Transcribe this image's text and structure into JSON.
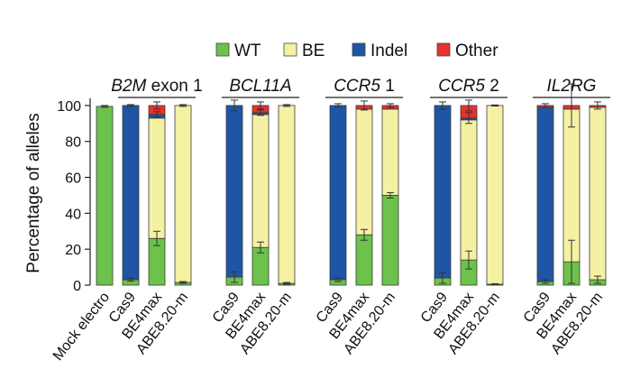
{
  "chart_data": {
    "type": "bar",
    "stacked": true,
    "ylabel": "Percentage of alleles",
    "ylim": [
      0,
      110
    ],
    "yticks": [
      0,
      20,
      40,
      60,
      80,
      100
    ],
    "legend": [
      {
        "name": "WT",
        "color": "#6cc24a"
      },
      {
        "name": "BE",
        "color": "#f4f1a2"
      },
      {
        "name": "Indel",
        "color": "#1f55a5"
      },
      {
        "name": "Other",
        "color": "#e8312f"
      }
    ],
    "legend_position": "top-right",
    "control": {
      "category": "Mock electro",
      "values": {
        "WT": 99.5,
        "BE": 0,
        "Indel": 0,
        "Other": 0
      },
      "error": 0.5
    },
    "groups": [
      {
        "label_italic": "B2M",
        "label_rest": " exon 1",
        "bars": [
          {
            "category": "Cas9",
            "values": {
              "WT": 3,
              "BE": 0,
              "Indel": 97,
              "Other": 0
            },
            "wt_error": 0.8,
            "top_error": 0.5
          },
          {
            "category": "BE4max",
            "values": {
              "WT": 26,
              "BE": 67,
              "Indel": 2,
              "Other": 5
            },
            "wt_error": 4,
            "top_error": 2,
            "other_error": 1.5
          },
          {
            "category": "ABE8.20-m",
            "values": {
              "WT": 1.5,
              "BE": 98.5,
              "Indel": 0,
              "Other": 0
            },
            "wt_error": 0.5,
            "top_error": 0.5
          }
        ]
      },
      {
        "label_italic": "BCL11A",
        "label_rest": "",
        "bars": [
          {
            "category": "Cas9",
            "values": {
              "WT": 4.5,
              "BE": 0,
              "Indel": 95.5,
              "Other": 0
            },
            "wt_error": 3,
            "top_error": 3
          },
          {
            "category": "BE4max",
            "values": {
              "WT": 21,
              "BE": 74,
              "Indel": 1,
              "Other": 4
            },
            "wt_error": 3,
            "top_error": 2,
            "other_error": 1.5
          },
          {
            "category": "ABE8.20-m",
            "values": {
              "WT": 1,
              "BE": 99,
              "Indel": 0,
              "Other": 0
            },
            "wt_error": 0.5,
            "top_error": 0.5
          }
        ]
      },
      {
        "label_italic": "CCR5",
        "label_rest": " 1",
        "bars": [
          {
            "category": "Cas9",
            "values": {
              "WT": 3,
              "BE": 0,
              "Indel": 97,
              "Other": 0
            },
            "wt_error": 1,
            "top_error": 1
          },
          {
            "category": "BE4max",
            "values": {
              "WT": 28,
              "BE": 70,
              "Indel": 0,
              "Other": 2
            },
            "wt_error": 3,
            "top_error": 2.5
          },
          {
            "category": "ABE8.20-m",
            "values": {
              "WT": 50,
              "BE": 48,
              "Indel": 0,
              "Other": 2
            },
            "wt_error": 1.5,
            "top_error": 1
          }
        ]
      },
      {
        "label_italic": "CCR5",
        "label_rest": " 2",
        "bars": [
          {
            "category": "Cas9",
            "values": {
              "WT": 4,
              "BE": 0,
              "Indel": 96,
              "Other": 0
            },
            "wt_error": 3,
            "top_error": 2
          },
          {
            "category": "BE4max",
            "values": {
              "WT": 14,
              "BE": 78,
              "Indel": 1,
              "Other": 7
            },
            "wt_error": 5,
            "top_error": 3,
            "other_error": 3
          },
          {
            "category": "ABE8.20-m",
            "values": {
              "WT": 0.5,
              "BE": 99.5,
              "Indel": 0,
              "Other": 0
            },
            "wt_error": 0.3,
            "top_error": 0.3
          }
        ]
      },
      {
        "label_italic": "IL2RG",
        "label_rest": "",
        "bars": [
          {
            "category": "Cas9",
            "values": {
              "WT": 2,
              "BE": 0,
              "Indel": 97,
              "Other": 1
            },
            "wt_error": 1,
            "top_error": 1
          },
          {
            "category": "BE4max",
            "values": {
              "WT": 13,
              "BE": 85,
              "Indel": 0,
              "Other": 2
            },
            "wt_error": 12,
            "top_error": 12
          },
          {
            "category": "ABE8.20-m",
            "values": {
              "WT": 3,
              "BE": 96,
              "Indel": 0,
              "Other": 1
            },
            "wt_error": 2,
            "top_error": 2
          }
        ]
      }
    ]
  }
}
